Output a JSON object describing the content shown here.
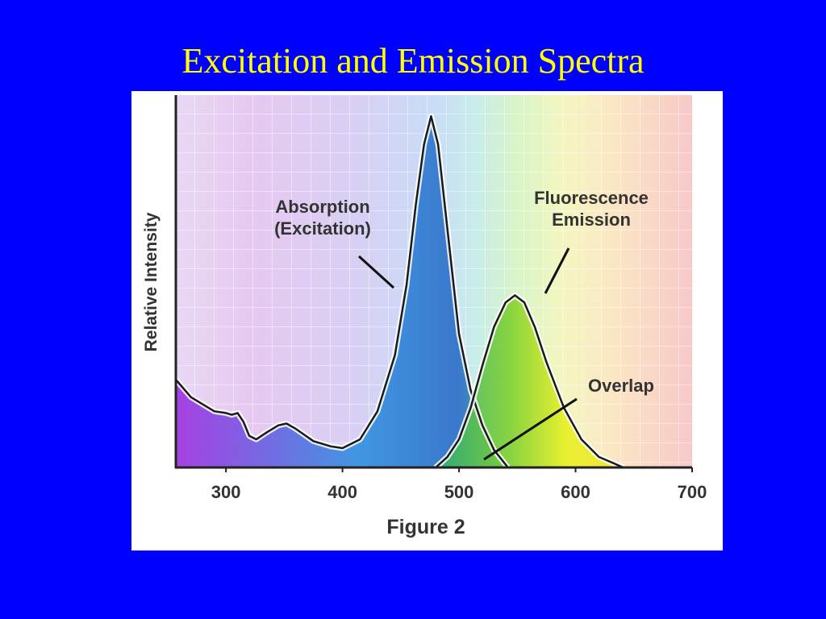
{
  "chart_data": {
    "type": "line",
    "title": "Excitation and Emission Spectra",
    "caption": "Figure 2",
    "y_label": "Relative Intensity",
    "xlim": [
      257,
      700
    ],
    "xticks": [
      300,
      400,
      500,
      600,
      700
    ],
    "ylim": [
      0,
      106
    ],
    "grid": true,
    "series": [
      {
        "name": "Absorption (Excitation)",
        "color": "#2f7fd6",
        "x": [
          257,
          270,
          290,
          300,
          305,
          310,
          315,
          320,
          326,
          335,
          345,
          352,
          360,
          375,
          390,
          400,
          415,
          430,
          445,
          455,
          463,
          470,
          476,
          482,
          490,
          500,
          510,
          520,
          530,
          542
        ],
        "values": [
          25,
          20,
          16,
          15.5,
          15,
          15.5,
          13,
          9,
          8,
          10,
          12,
          12.5,
          11,
          7.5,
          6,
          5.5,
          8,
          16,
          32,
          52,
          75,
          92,
          100,
          92,
          68,
          38,
          22,
          12,
          5,
          0
        ]
      },
      {
        "name": "Fluorescence Emission",
        "color": "#c8e02a",
        "x": [
          480,
          490,
          500,
          510,
          520,
          530,
          540,
          548,
          556,
          565,
          575,
          590,
          605,
          620,
          641
        ],
        "values": [
          0,
          3,
          8,
          17,
          29,
          40,
          47,
          49,
          47,
          40,
          30,
          17,
          8,
          3,
          0
        ]
      }
    ],
    "annotations": [
      "Overlap"
    ]
  }
}
